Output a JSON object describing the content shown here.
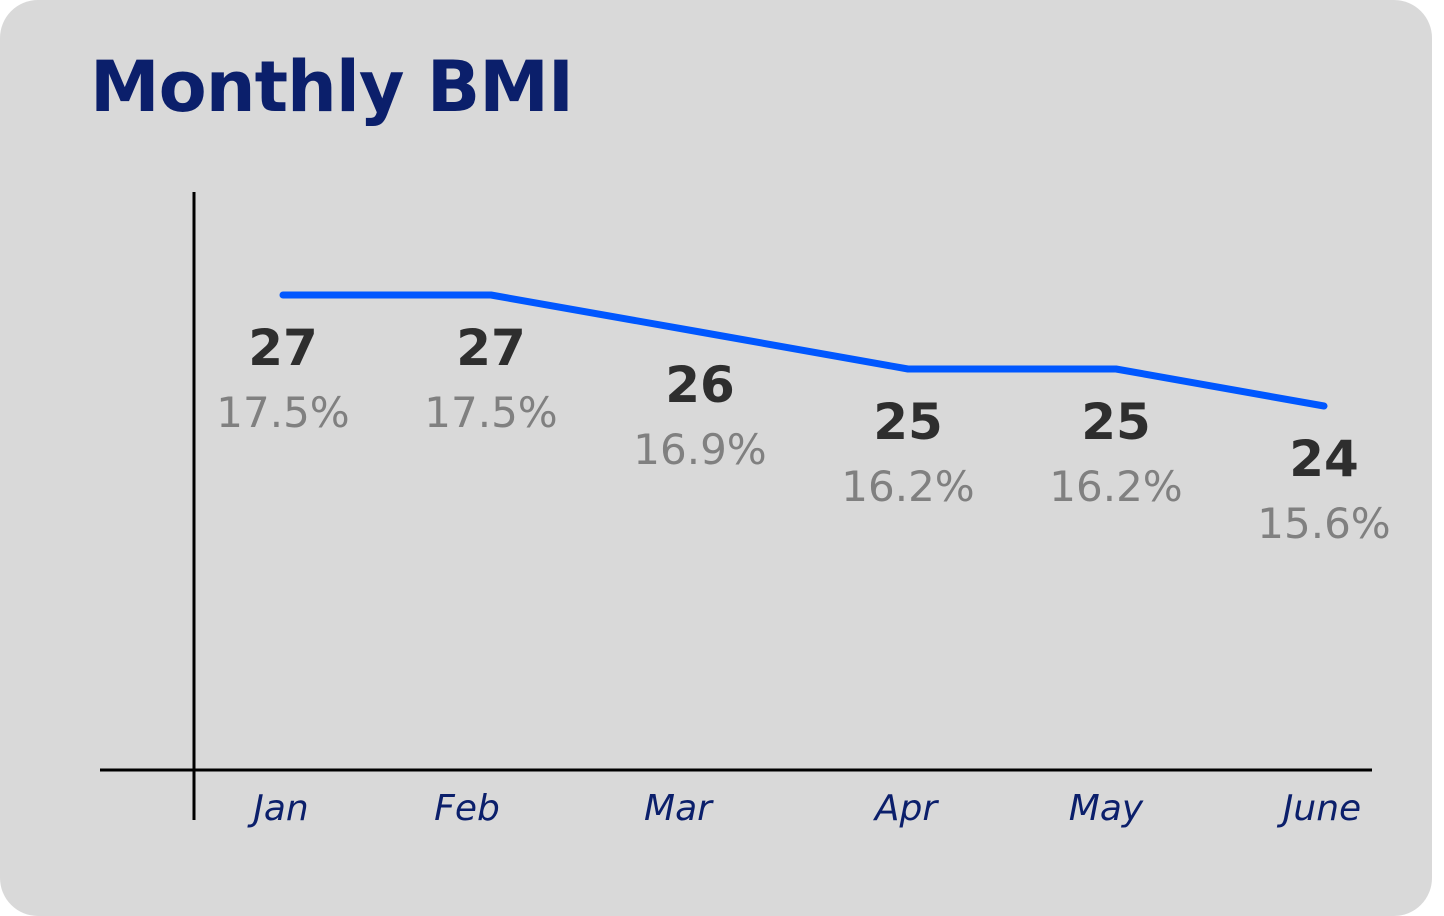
{
  "chart_data": {
    "type": "line",
    "title": "Monthly BMI",
    "categories": [
      "Jan",
      "Feb",
      "Mar",
      "Apr",
      "May",
      "June"
    ],
    "values": [
      27,
      27,
      26,
      25,
      25,
      24
    ],
    "percent_labels": [
      "17.5%",
      "17.5%",
      "16.9%",
      "16.2%",
      "16.2%",
      "15.6%"
    ],
    "xlabel": "",
    "ylabel": "",
    "line_color": "#0057ff",
    "grid": false,
    "legend": "none"
  }
}
